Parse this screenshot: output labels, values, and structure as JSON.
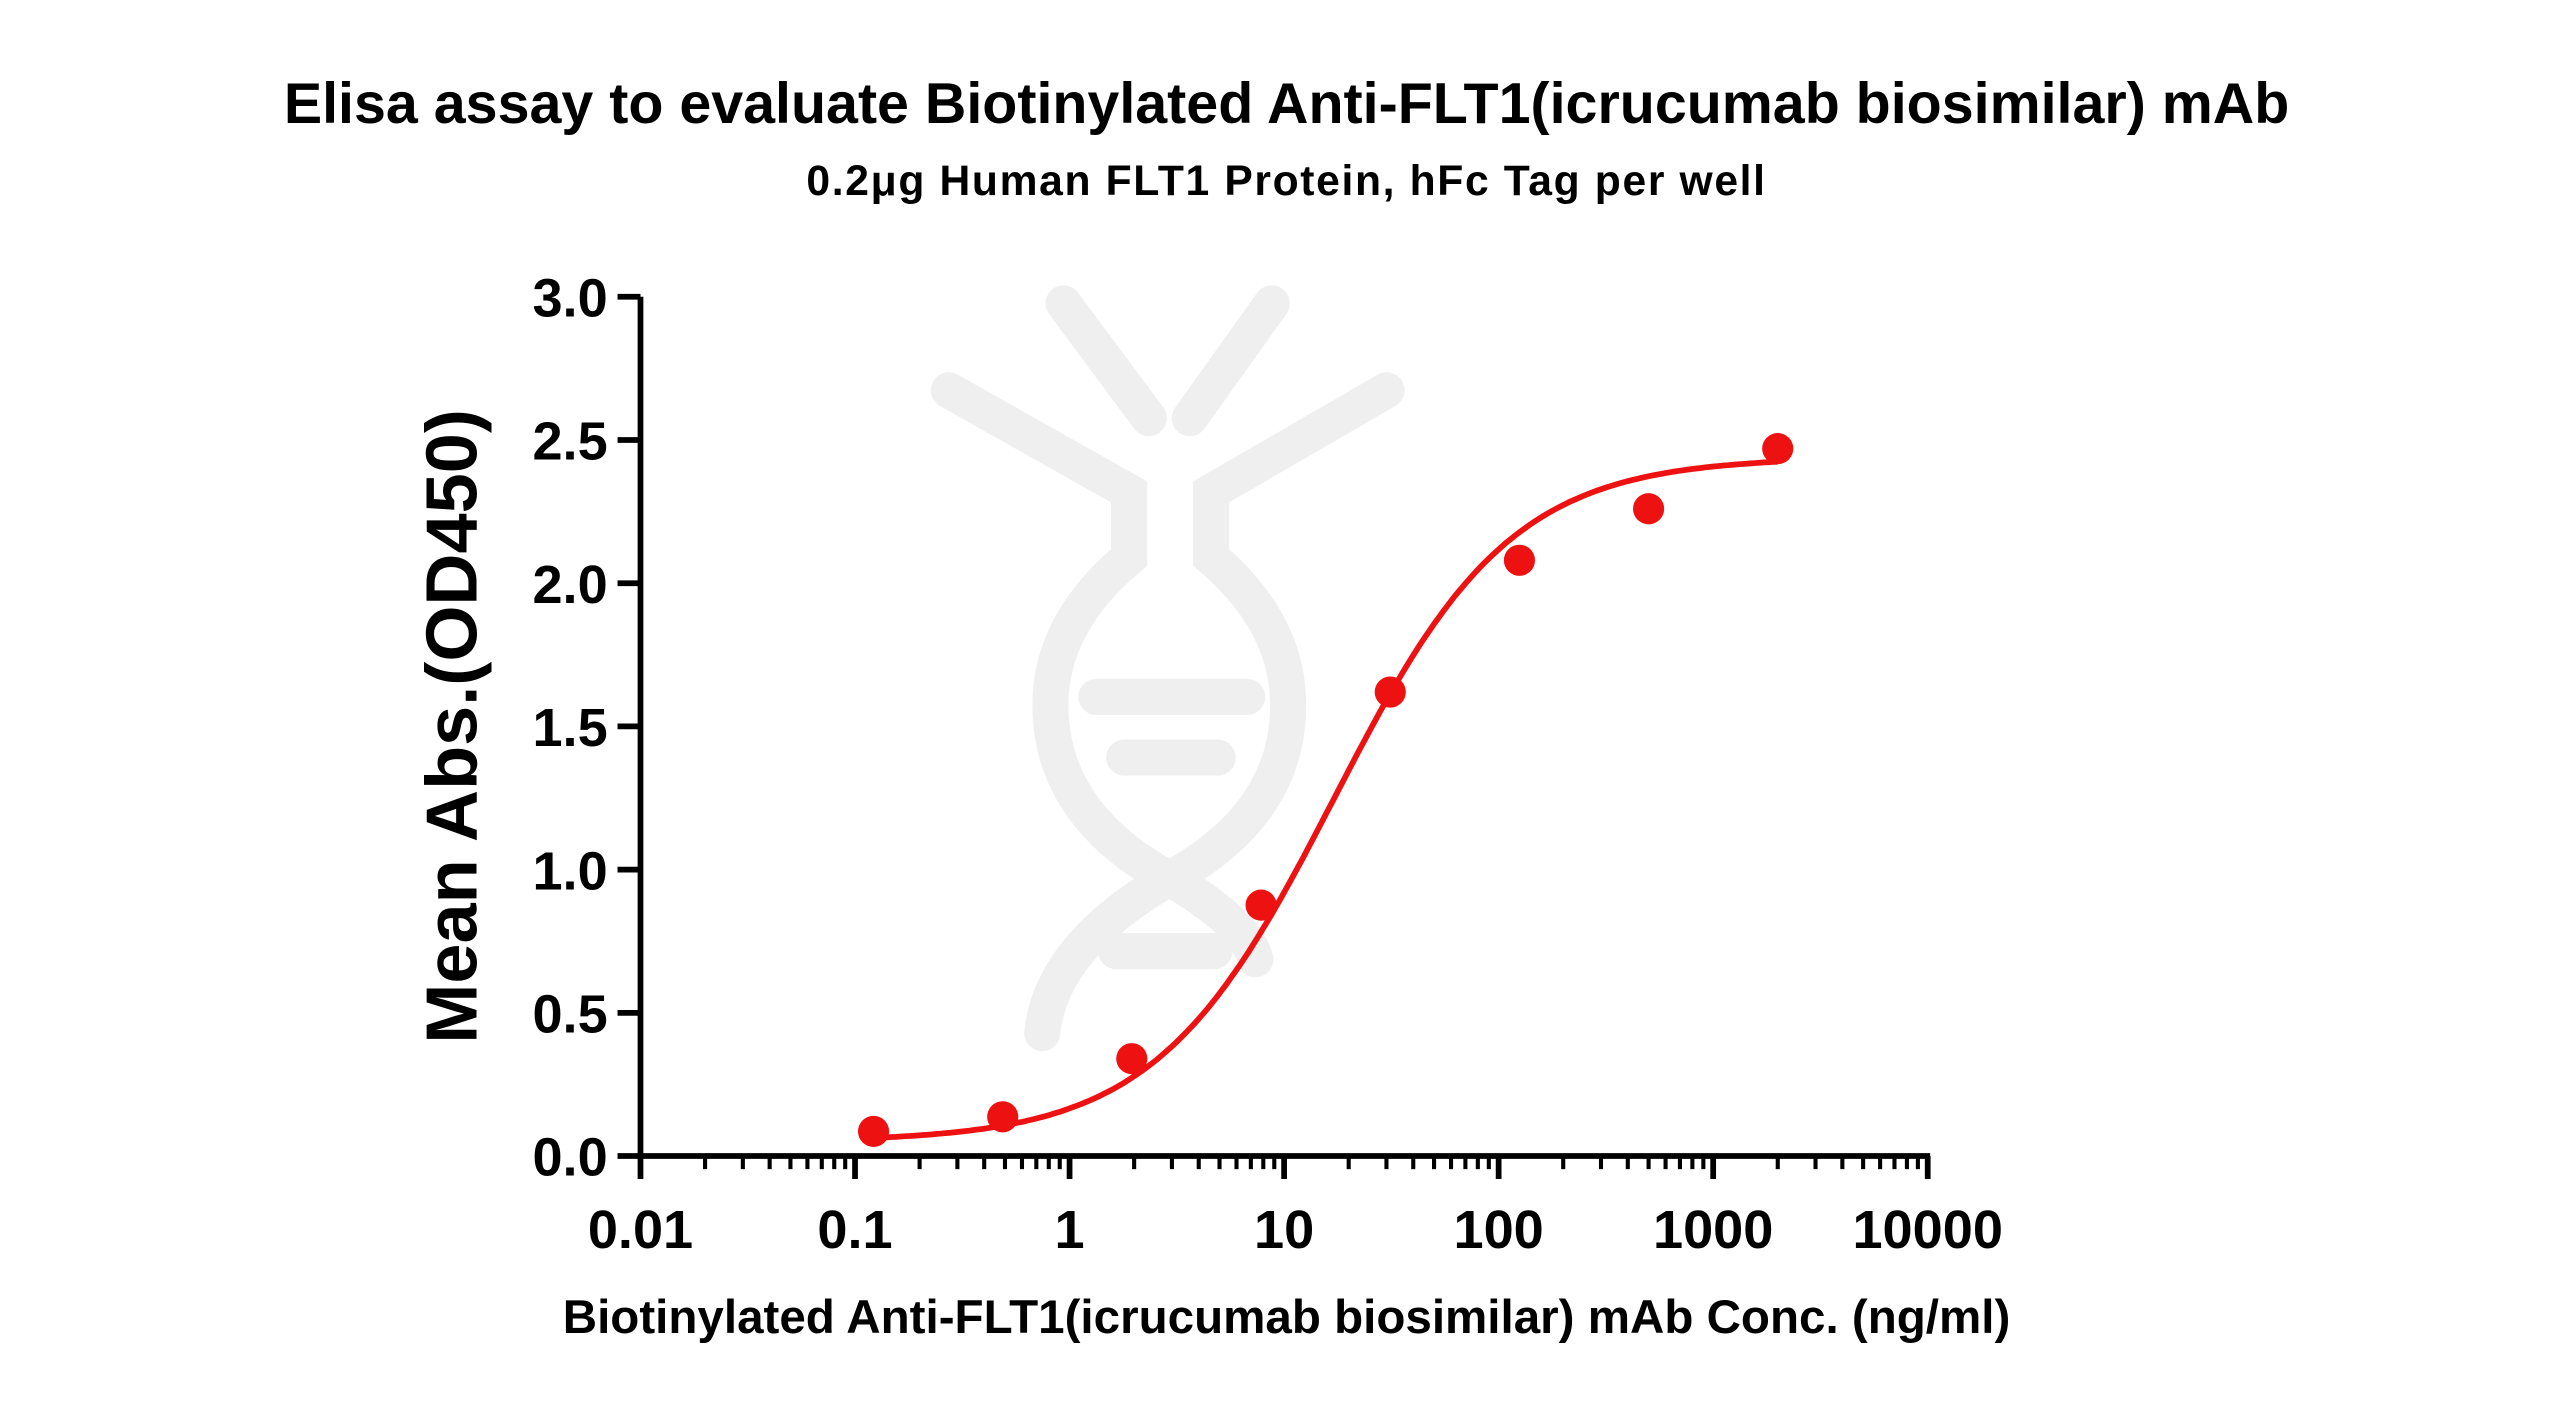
{
  "chart_data": {
    "type": "scatter",
    "title": "Elisa assay to evaluate Biotinylated Anti-FLT1(icrucumab biosimilar) mAb",
    "subtitle": "0.2μg Human FLT1 Protein, hFc Tag  per well",
    "xlabel": "Biotinylated Anti-FLT1(icrucumab biosimilar) mAb Conc. (ng/ml)",
    "ylabel": "Mean Abs.(OD450)",
    "xscale": "log",
    "xlim": [
      0.01,
      10000
    ],
    "ylim": [
      0,
      3.0
    ],
    "xticks": [
      "0.01",
      "0.1",
      "1",
      "10",
      "100",
      "1000",
      "10000"
    ],
    "yticks": [
      "0.0",
      "0.5",
      "1.0",
      "1.5",
      "2.0",
      "2.5",
      "3.0"
    ],
    "grid": false,
    "color": "#ee1111",
    "fit": "sigmoidal curve",
    "series": [
      {
        "x": [
          0.122,
          0.488,
          1.95,
          7.81,
          31.25,
          125,
          500,
          2000
        ],
        "y": [
          0.086,
          0.137,
          0.34,
          0.876,
          1.62,
          2.08,
          2.26,
          2.47
        ]
      }
    ],
    "watermark": "DNA logo"
  }
}
